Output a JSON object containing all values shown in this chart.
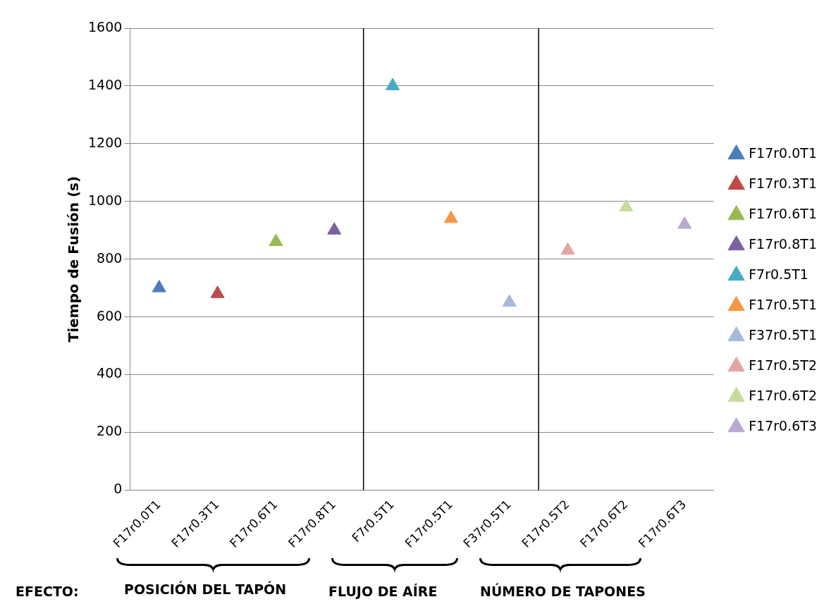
{
  "chart_data": {
    "type": "scatter",
    "ylabel": "Tiempo de Fusión (s)",
    "categories": [
      "F17r0.0T1",
      "F17r0.3T1",
      "F17r0.6T1",
      "F17r0.8T1",
      "F7r0.5T1",
      "F17r0.5T1",
      "F37r0.5T1",
      "F17r0.5T2",
      "F17r0.6T2",
      "F17r0.6T3"
    ],
    "series": [
      {
        "name": "F17r0.0T1",
        "color": "#4a7ebb",
        "values": [
          700,
          null,
          null,
          null,
          null,
          null,
          null,
          null,
          null,
          null
        ]
      },
      {
        "name": "F17r0.3T1",
        "color": "#be4b48",
        "values": [
          null,
          680,
          null,
          null,
          null,
          null,
          null,
          null,
          null,
          null
        ]
      },
      {
        "name": "F17r0.6T1",
        "color": "#98b954",
        "values": [
          null,
          null,
          860,
          null,
          null,
          null,
          null,
          null,
          null,
          null
        ]
      },
      {
        "name": "F17r0.8T1",
        "color": "#7d60a0",
        "values": [
          null,
          null,
          null,
          900,
          null,
          null,
          null,
          null,
          null,
          null
        ]
      },
      {
        "name": "F7r0.5T1",
        "color": "#46aac5",
        "values": [
          null,
          null,
          null,
          null,
          1400,
          null,
          null,
          null,
          null,
          null
        ]
      },
      {
        "name": "F17r0.5T1",
        "color": "#f79646",
        "values": [
          null,
          null,
          null,
          null,
          null,
          940,
          null,
          null,
          null,
          null
        ]
      },
      {
        "name": "F37r0.5T1",
        "color": "#a5b9dd",
        "values": [
          null,
          null,
          null,
          null,
          null,
          null,
          650,
          null,
          null,
          null
        ]
      },
      {
        "name": "F17r0.5T2",
        "color": "#e6a3a2",
        "values": [
          null,
          null,
          null,
          null,
          null,
          null,
          null,
          830,
          null,
          null
        ]
      },
      {
        "name": "F17r0.6T2",
        "color": "#c6dc9d",
        "values": [
          null,
          null,
          null,
          null,
          null,
          null,
          null,
          null,
          980,
          null
        ]
      },
      {
        "name": "F17r0.6T3",
        "color": "#b9aad0",
        "values": [
          null,
          null,
          null,
          null,
          null,
          null,
          null,
          null,
          null,
          920
        ]
      }
    ],
    "ylim": [
      0,
      1600
    ],
    "yticks": [
      0,
      200,
      400,
      600,
      800,
      1000,
      1200,
      1400,
      1600
    ],
    "grid": "y",
    "legend": "right",
    "marker": "triangle",
    "annotations": [
      "EFECTO:",
      "POSICIÓN DEL TAPÓN",
      "FLUJO DE AÍRE",
      "NÚMERO DE TAPONES"
    ]
  }
}
